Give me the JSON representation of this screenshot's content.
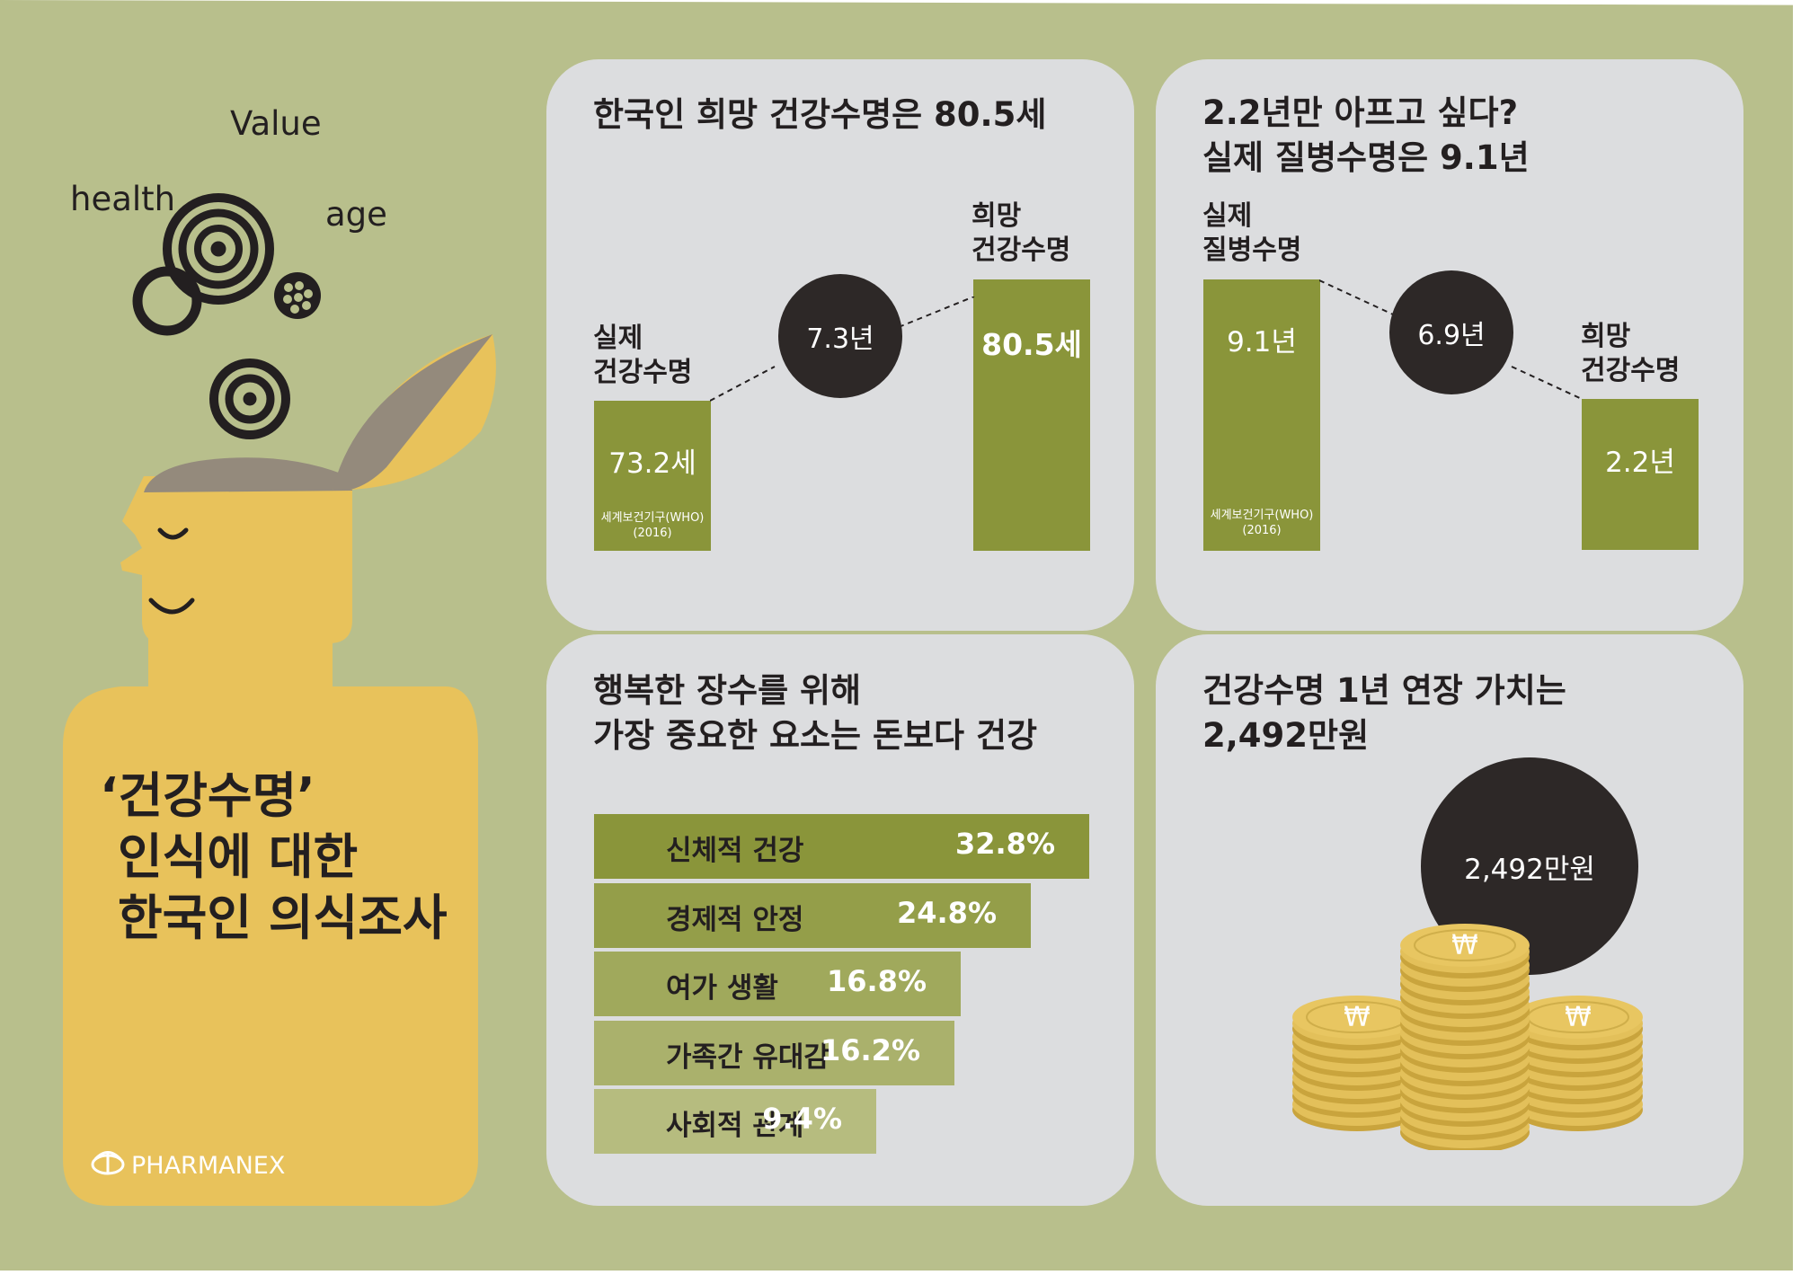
{
  "intro": {
    "words": [
      "Value",
      "health",
      "age"
    ],
    "title_lines": [
      "‘건강수명’",
      "인식에 대한",
      "한국인 의식조사"
    ],
    "logo": "PHARMANEX"
  },
  "panel1": {
    "title": "한국인 희망 건강수명은 80.5세",
    "left_label": "실제\n건강수명",
    "left_value": "73.2세",
    "left_source": "세계보건기구(WHO)\n(2016)",
    "right_label": "희망\n건강수명",
    "right_value": "80.5세",
    "gap": "7.3년"
  },
  "panel2": {
    "title": "2.2년만 아프고 싶다?\n실제 질병수명은 9.1년",
    "left_label": "실제\n질병수명",
    "left_value": "9.1년",
    "left_source": "세계보건기구(WHO)\n(2016)",
    "right_label": "희망\n건강수명",
    "right_value": "2.2년",
    "gap": "6.9년"
  },
  "panel3": {
    "title": "행복한 장수를 위해\n가장 중요한 요소는 돈보다 건강",
    "items": [
      {
        "label": "신체적 건강",
        "value": "32.8%",
        "percent": 32.8,
        "color": "#8a953a"
      },
      {
        "label": "경제적 안정",
        "value": "24.8%",
        "percent": 24.8,
        "color": "#949e49"
      },
      {
        "label": "여가 생활",
        "value": "16.8%",
        "percent": 16.8,
        "color": "#a0a95c"
      },
      {
        "label": "가족간 유대감",
        "value": "16.2%",
        "percent": 16.2,
        "color": "#aab16c"
      },
      {
        "label": "사회적 관계",
        "value": "9.4%",
        "percent": 9.4,
        "color": "#b6bc7f"
      }
    ]
  },
  "panel4": {
    "title": "건강수명 1년 연장 가치는\n2,492만원",
    "value": "2,492만원",
    "coin_symbol": "₩"
  },
  "colors": {
    "background": "#b8bf8c",
    "panel": "#dcdddf",
    "olive_bar": "#8a953a",
    "dark_circle": "#2d2827",
    "head_yellow": "#e8c25b",
    "lid_grey": "#948a7c"
  }
}
